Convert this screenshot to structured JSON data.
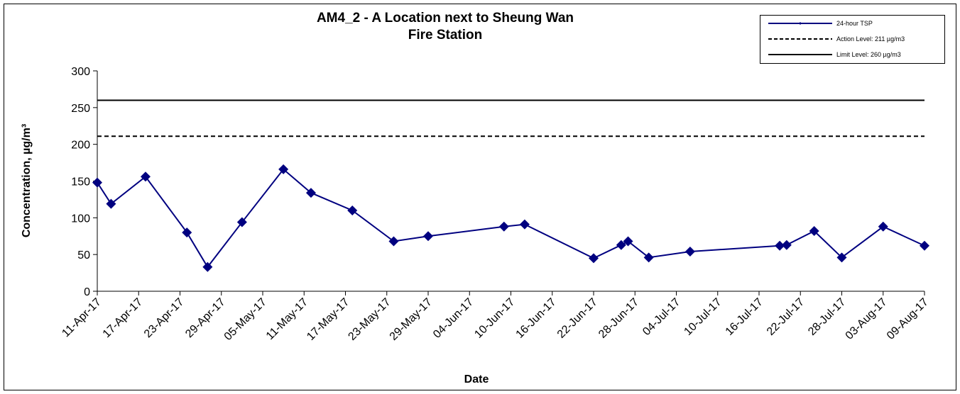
{
  "chart_data": {
    "type": "line",
    "title": [
      "AM4_2 - A Location next to Sheung Wan",
      "Fire Station"
    ],
    "x_label": "Date",
    "y_label": "Concentration, µg/m³",
    "x": [
      "2017-04-11",
      "2017-04-13",
      "2017-04-18",
      "2017-04-24",
      "2017-04-27",
      "2017-05-02",
      "2017-05-08",
      "2017-05-12",
      "2017-05-18",
      "2017-05-24",
      "2017-05-29",
      "2017-06-09",
      "2017-06-12",
      "2017-06-22",
      "2017-06-26",
      "2017-06-27",
      "2017-06-30",
      "2017-07-06",
      "2017-07-19",
      "2017-07-20",
      "2017-07-24",
      "2017-07-28",
      "2017-08-03",
      "2017-08-09"
    ],
    "series": [
      {
        "name": "24-hour TSP",
        "color": "#000080",
        "values": [
          148,
          119,
          156,
          80,
          33,
          94,
          166,
          134,
          110,
          68,
          75,
          88,
          91,
          45,
          63,
          68,
          46,
          54,
          62,
          63,
          82,
          46,
          88,
          62
        ]
      }
    ],
    "levels": [
      {
        "name": "Action Level: 211 µg/m3",
        "value": 211,
        "color": "#000000",
        "dash": true
      },
      {
        "name": "Limit Level: 260 µg/m3",
        "value": 260,
        "color": "#000000",
        "dash": false
      }
    ],
    "xlim": [
      "2017-04-11",
      "2017-08-09"
    ],
    "xticks": [
      {
        "value": "2017-04-11",
        "label": "11-Apr-17"
      },
      {
        "value": "2017-04-17",
        "label": "17-Apr-17"
      },
      {
        "value": "2017-04-23",
        "label": "23-Apr-17"
      },
      {
        "value": "2017-04-29",
        "label": "29-Apr-17"
      },
      {
        "value": "2017-05-05",
        "label": "05-May-17"
      },
      {
        "value": "2017-05-11",
        "label": "11-May-17"
      },
      {
        "value": "2017-05-17",
        "label": "17-May-17"
      },
      {
        "value": "2017-05-23",
        "label": "23-May-17"
      },
      {
        "value": "2017-05-29",
        "label": "29-May-17"
      },
      {
        "value": "2017-06-04",
        "label": "04-Jun-17"
      },
      {
        "value": "2017-06-10",
        "label": "10-Jun-17"
      },
      {
        "value": "2017-06-16",
        "label": "16-Jun-17"
      },
      {
        "value": "2017-06-22",
        "label": "22-Jun-17"
      },
      {
        "value": "2017-06-28",
        "label": "28-Jun-17"
      },
      {
        "value": "2017-07-04",
        "label": "04-Jul-17"
      },
      {
        "value": "2017-07-10",
        "label": "10-Jul-17"
      },
      {
        "value": "2017-07-16",
        "label": "16-Jul-17"
      },
      {
        "value": "2017-07-22",
        "label": "22-Jul-17"
      },
      {
        "value": "2017-07-28",
        "label": "28-Jul-17"
      },
      {
        "value": "2017-08-03",
        "label": "03-Aug-17"
      },
      {
        "value": "2017-08-09",
        "label": "09-Aug-17"
      }
    ],
    "ylim": [
      0,
      300
    ],
    "yticks": [
      0,
      50,
      100,
      150,
      200,
      250,
      300
    ],
    "legend": "top-right"
  }
}
